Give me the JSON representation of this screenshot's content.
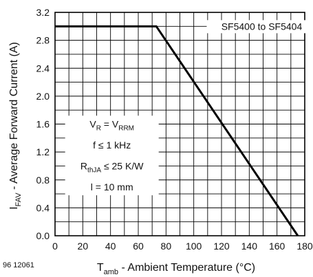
{
  "chart_data": {
    "type": "line",
    "xlabel": {
      "main": "T",
      "sub": "amb",
      "rest": " - Ambient Temperature (°C)"
    },
    "ylabel": {
      "main": "I",
      "sub": "FAV",
      "rest": " - Average Forward Current (A)"
    },
    "xlim": [
      0,
      180
    ],
    "ylim": [
      0,
      3.2
    ],
    "x_ticks": [
      0,
      20,
      40,
      60,
      80,
      100,
      120,
      140,
      160,
      180
    ],
    "y_ticks": [
      "0.0",
      "0.4",
      "0.8",
      "1.2",
      "1.6",
      "2.0",
      "2.4",
      "2.8",
      "3.2"
    ],
    "grid": true,
    "series": [
      {
        "name": "SF5400 to SF5404",
        "x": [
          0,
          73,
          175
        ],
        "y": [
          3.0,
          3.0,
          0.0
        ]
      }
    ],
    "conditions": {
      "line1": {
        "a": "V",
        "as": "R",
        "op": " = V",
        "b": "RRM"
      },
      "line2": "f ≤ 1 kHz",
      "line3": {
        "a": "R",
        "as": "thJA",
        "rest": " ≤ 25 K/W"
      },
      "line4": "l = 10 mm"
    },
    "figure_code": "96 12061"
  }
}
